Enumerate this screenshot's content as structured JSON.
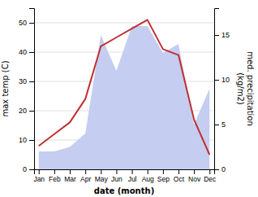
{
  "chart_data": {
    "type": "line",
    "categories": [
      "Jan",
      "Feb",
      "Mar",
      "Apr",
      "May",
      "Jun",
      "Jul",
      "Aug",
      "Sep",
      "Oct",
      "Nov",
      "Dec"
    ],
    "xlabel": "date (month)",
    "ylabel": "max temp (C)",
    "y2label": "med. precipitation\n(kg/m2)",
    "series": [
      {
        "type": "area",
        "axis": "y2",
        "color": "#c5cef0",
        "values": [
          2,
          2,
          2.5,
          4,
          15,
          11,
          16,
          16,
          13,
          14,
          5,
          9
        ]
      },
      {
        "type": "line",
        "color": "#c03030",
        "values": [
          8,
          12,
          16,
          24,
          42,
          45,
          48,
          51,
          41,
          39,
          17,
          5
        ]
      }
    ],
    "ylim": [
      0,
      55
    ],
    "yticks": [
      0,
      10,
      20,
      30,
      40,
      50
    ],
    "y2lim": [
      0,
      18
    ],
    "y2ticks": [
      0,
      5,
      10,
      15
    ],
    "grid": true
  }
}
